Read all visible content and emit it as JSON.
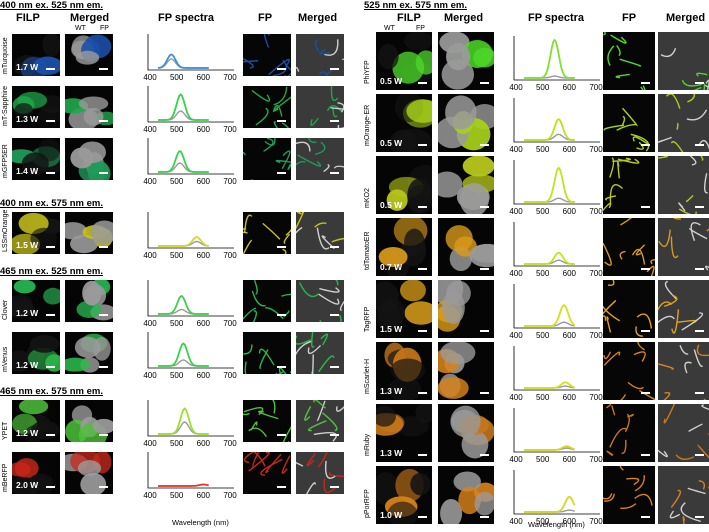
{
  "figure": {
    "left": {
      "headers": {
        "filp": "FILP",
        "merged": "Merged",
        "spectra": "FP spectra",
        "fp": "FP",
        "merged2": "Merged",
        "wt": "WT",
        "fp_sub": "FP"
      },
      "rows": [
        {
          "label": "mTurquoise",
          "power": "1.7 W",
          "section": "400 nm ex. 525 nm em.",
          "color": "#3f8fd8",
          "peak": 480,
          "amp": 0.45,
          "gray": 0.3
        },
        {
          "label": "mT-Sapphire",
          "power": "1.3 W",
          "color": "#39d24a",
          "peak": 515,
          "amp": 0.85,
          "gray": 0.3
        },
        {
          "label": "mGFP5ER",
          "power": "1.4 W",
          "color": "#39d24a",
          "peak": 512,
          "amp": 0.7,
          "gray": 0.3
        },
        {
          "label": "LSSmOrange",
          "power": "1.5 W",
          "section": "400 nm ex. 575 nm em.",
          "color": "#d8d81a",
          "peak": 575,
          "amp": 0.3,
          "gray": 0.15
        },
        {
          "label": "Clover",
          "power": "1.2 W",
          "section": "465 nm ex. 525 nm em.",
          "color": "#39d24a",
          "peak": 518,
          "amp": 0.6,
          "gray": 0.15
        },
        {
          "label": "mVenus",
          "power": "1.2 W",
          "color": "#39d24a",
          "peak": 525,
          "amp": 0.75,
          "gray": 0.2
        },
        {
          "label": "YPET",
          "power": "1.2 W",
          "section": "465 nm ex. 575 nm em.",
          "color": "#9be22a",
          "peak": 530,
          "amp": 0.85,
          "gray": 0.4
        },
        {
          "label": "mBeRFP",
          "power": "2.0 W",
          "color": "#e23a2a",
          "peak": 600,
          "amp": 0.05,
          "gray": 0.05
        }
      ]
    },
    "right": {
      "section": "525 nm ex. 575 nm em.",
      "headers": {
        "filp": "FILP",
        "merged": "Merged",
        "spectra": "FP spectra",
        "fp": "FP",
        "merged2": "Merged",
        "wt": "WT",
        "fp_sub": "FP"
      },
      "rows": [
        {
          "label": "PhiYFP",
          "power": "0.5 W",
          "color": "#7ee22a",
          "peak": 545,
          "amp": 1.0,
          "gray": 0.05
        },
        {
          "label": "mOrange-ER",
          "power": "0.5 W",
          "color": "#b8e21a",
          "peak": 560,
          "amp": 0.55,
          "gray": 0.15
        },
        {
          "label": "mKO2",
          "power": "0.5 W",
          "color": "#c2e21a",
          "peak": 560,
          "amp": 0.9,
          "gray": 0.1
        },
        {
          "label": "tdTomatoER",
          "power": "0.7 W",
          "color": "#c8e21a",
          "peak": 560,
          "amp": 0.3,
          "gray": 0.1
        },
        {
          "label": "TagRFP",
          "power": "1.5 W",
          "color": "#d4e21a",
          "peak": 580,
          "amp": 0.55,
          "gray": 0.1
        },
        {
          "label": "mScarlet-H",
          "power": "1.3 W",
          "color": "#d4e21a",
          "peak": 585,
          "amp": 0.15,
          "gray": 0.05
        },
        {
          "label": "mRuby",
          "power": "1.3 W",
          "color": "#d8d81a",
          "peak": 590,
          "amp": 0.1,
          "gray": 0.05
        },
        {
          "label": "pPorRFP",
          "power": "1.0 W",
          "color": "#d8d81a",
          "peak": 600,
          "amp": 0.4,
          "gray": 0.05
        }
      ]
    },
    "axis": {
      "ticks": [
        "400",
        "500",
        "600",
        "700"
      ],
      "xlabel": "Wavelength (nm)",
      "xlim": [
        400,
        700
      ]
    },
    "tile_colors": {
      "mTurquoise": "#1b4fa8",
      "mT-Sapphire": "#1fa84a",
      "mGFP5ER": "#1f9a5a",
      "LSSmOrange": "#c8c21a",
      "Clover": "#27b552",
      "mVenus": "#2cb84a",
      "YPET": "#4ec23a",
      "mBeRFP": "#c8281a",
      "PhiYFP": "#4ed82a",
      "mOrange-ER": "#a8d21a",
      "mKO2": "#b8c81a",
      "tdTomatoER": "#d89a1a",
      "TagRFP": "#e0a21a",
      "mScarlet-H": "#d8821a",
      "mRuby": "#c8781a",
      "pPorRFP": "#d8821a"
    }
  },
  "chart_data": [
    {
      "type": "line",
      "title": "FP spectra",
      "xlabel": "Wavelength (nm)",
      "xlim": [
        400,
        700
      ],
      "x_ticks": [
        400,
        500,
        600,
        700
      ],
      "panels_left": [
        "mTurquoise",
        "mT-Sapphire",
        "mGFP5ER",
        "LSSmOrange",
        "Clover",
        "mVenus",
        "YPET",
        "mBeRFP"
      ],
      "panels_right": [
        "PhiYFP",
        "mOrange-ER",
        "mKO2",
        "tdTomatoER",
        "TagRFP",
        "mScarlet-H",
        "mRuby",
        "pPorRFP"
      ]
    }
  ]
}
